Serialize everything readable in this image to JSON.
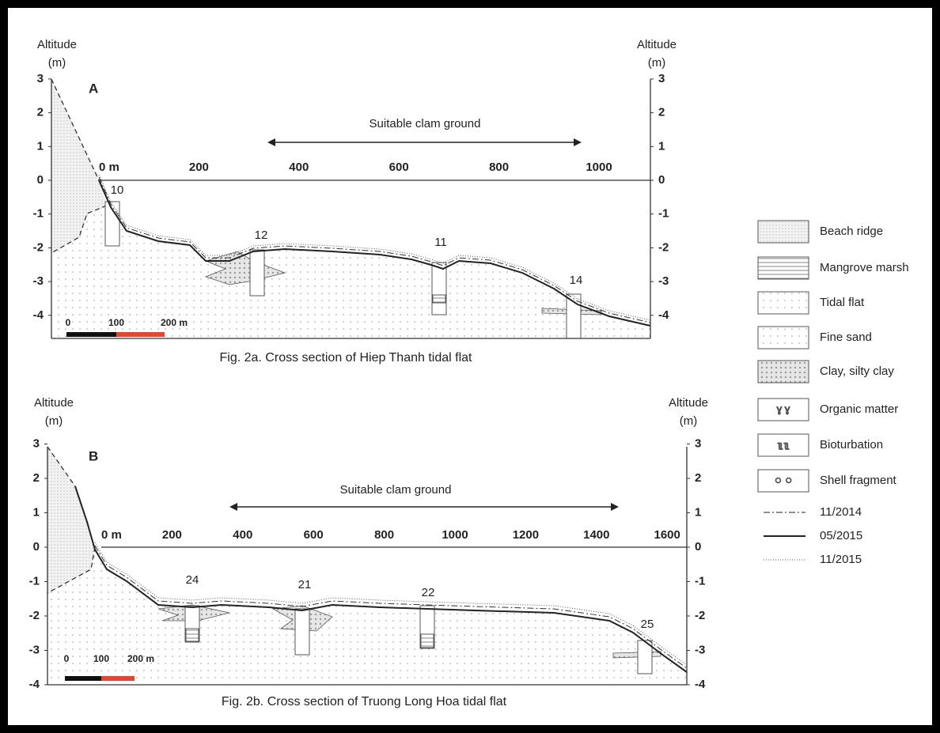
{
  "panels": [
    {
      "label": "A",
      "left_axis_title": "Altitude",
      "left_axis_unit": "(m)",
      "right_axis_title": "Altitude",
      "right_axis_unit": "(m)",
      "altitude_ticks": [
        3,
        2,
        1,
        0,
        -1,
        -2,
        -3,
        -4
      ],
      "distance_ticks": [
        {
          "value": 0,
          "label": "0 m"
        },
        200,
        400,
        600,
        800,
        1000
      ],
      "annotation": "Suitable clam ground",
      "cores": [
        "10",
        "12",
        "11",
        "14"
      ],
      "scale_bar": [
        "0",
        "100",
        "200 m"
      ],
      "caption": "Fig. 2a. Cross section of Hiep Thanh tidal flat"
    },
    {
      "label": "B",
      "left_axis_title": "Altitude",
      "left_axis_unit": "(m)",
      "right_axis_title": "Altitude",
      "right_axis_unit": "(m)",
      "altitude_ticks": [
        3,
        2,
        1,
        0,
        -1,
        -2,
        -3,
        -4
      ],
      "distance_ticks": [
        {
          "value": 0,
          "label": "0 m"
        },
        200,
        400,
        600,
        800,
        1000,
        1200,
        1400,
        1600
      ],
      "annotation": "Suitable clam ground",
      "cores": [
        "24",
        "21",
        "22",
        "25"
      ],
      "scale_bar": [
        "0",
        "100",
        "200 m"
      ],
      "caption": "Fig. 2b. Cross section of Truong Long Hoa tidal flat"
    }
  ],
  "legend": {
    "units": [
      "Beach ridge",
      "Mangrove marsh",
      "Tidal flat",
      "Fine sand",
      "Clay, silty clay",
      "Organic matter",
      "Bioturbation",
      "Shell fragment"
    ],
    "lines": [
      "11/2014",
      "05/2015",
      "11/2015"
    ]
  }
}
